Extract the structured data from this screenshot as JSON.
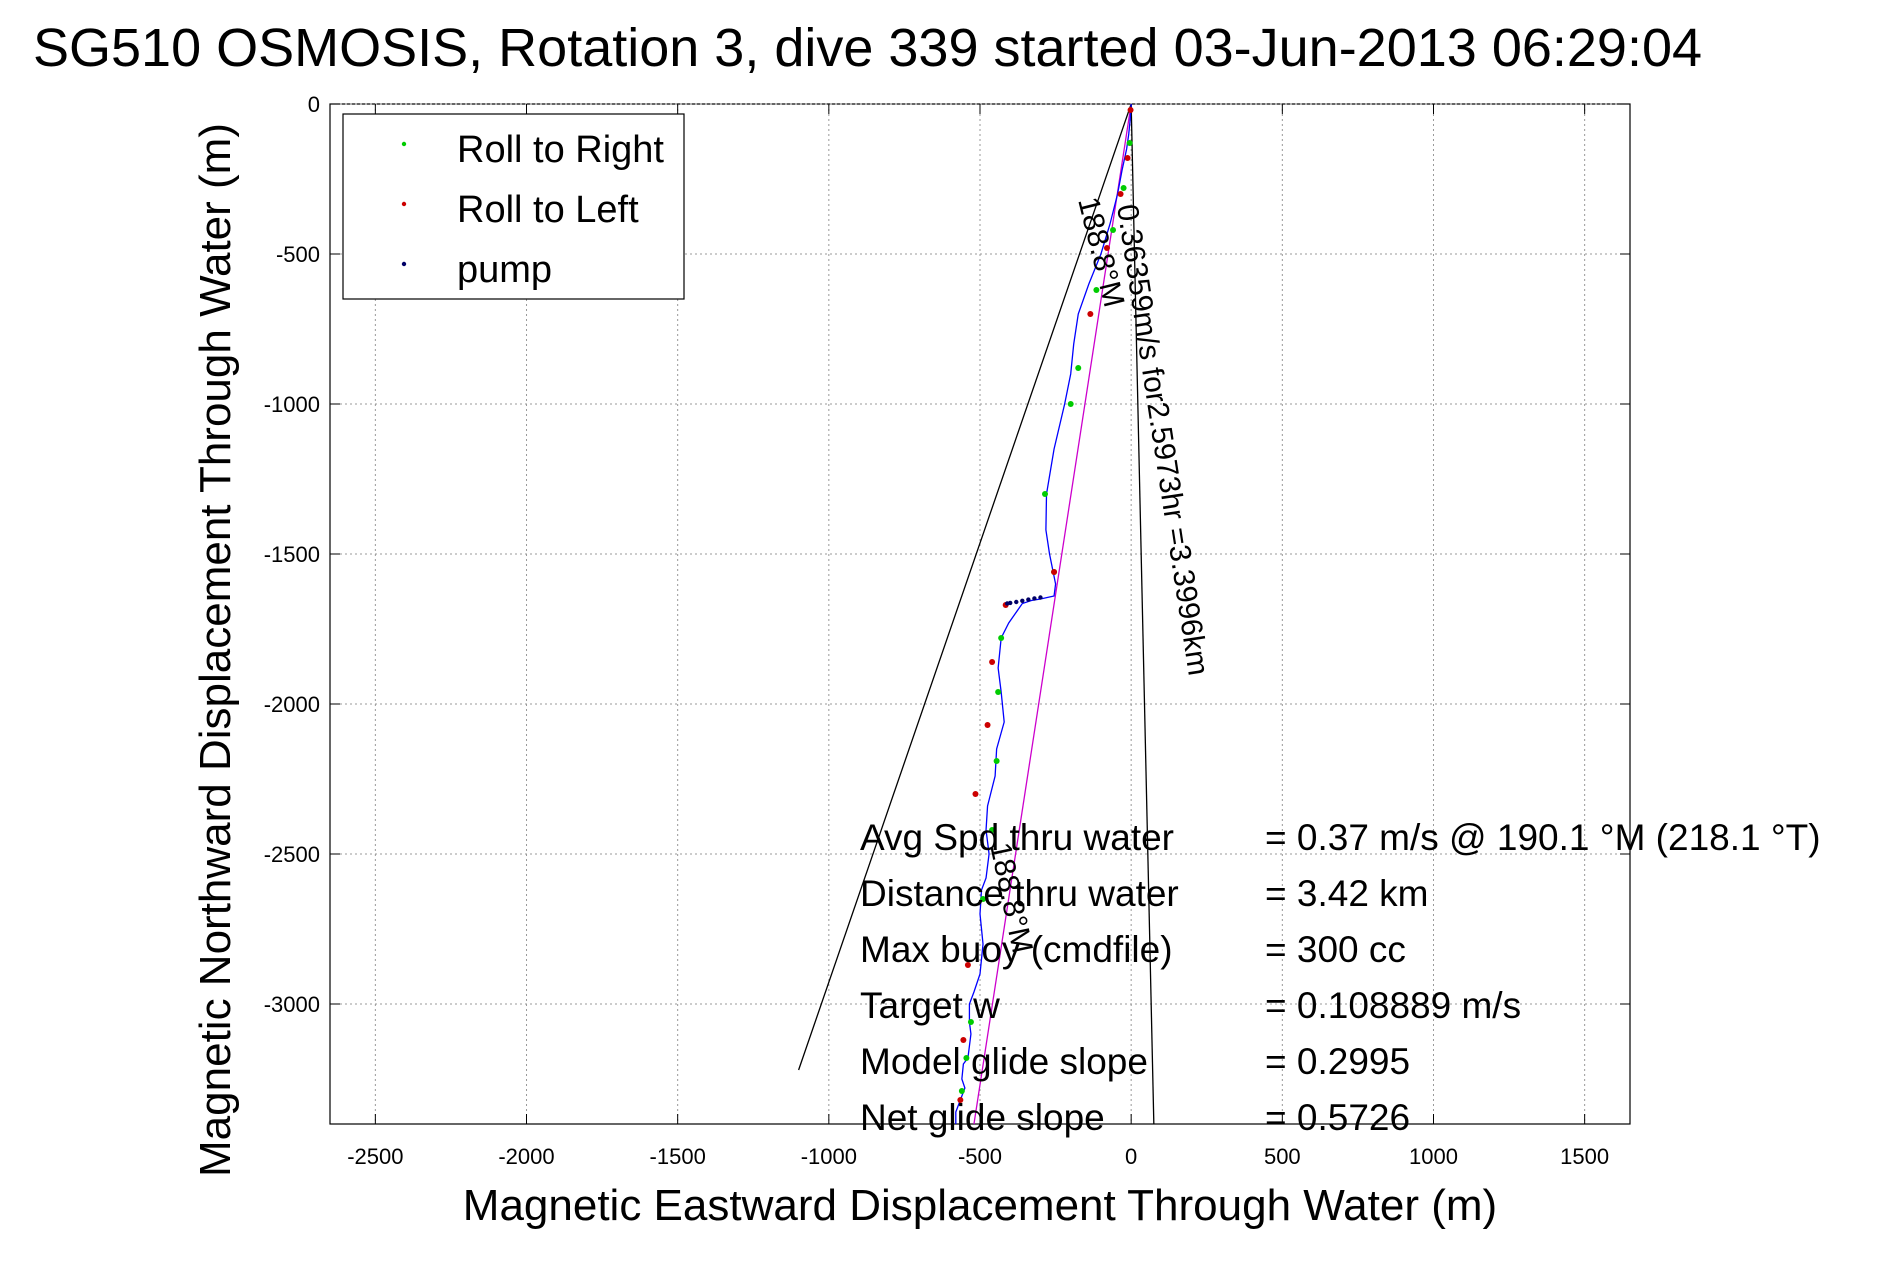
{
  "chart_data": {
    "type": "scatter",
    "title": "SG510 OSMOSIS, Rotation 3, dive 339 started 03-Jun-2013 06:29:04",
    "xlabel": "Magnetic Eastward Displacement Through Water (m)",
    "ylabel": "Magnetic Northward Displacement Through Water (m)",
    "xlim": [
      -2650,
      1650
    ],
    "ylim": [
      -3400,
      0
    ],
    "xticks": [
      -2500,
      -2000,
      -1500,
      -1000,
      -500,
      0,
      500,
      1000,
      1500
    ],
    "yticks": [
      0,
      -500,
      -1000,
      -1500,
      -2000,
      -2500,
      -3000
    ],
    "grid": true,
    "legend_position": "top-left",
    "colors": {
      "roll_right": "#00cc00",
      "roll_left": "#cc0000",
      "pump": "#000066",
      "track": "#0000ff",
      "avg_line": "#cc00cc",
      "cone": "#000000"
    },
    "legend": [
      {
        "label": "Roll to Right",
        "color": "#00cc00"
      },
      {
        "label": "Roll to Left",
        "color": "#cc0000"
      },
      {
        "label": "pump",
        "color": "#000066"
      }
    ],
    "series": [
      {
        "name": "track",
        "x": [
          0,
          -3,
          -8,
          -15,
          -30,
          -45,
          -70,
          -100,
          -140,
          -175,
          -190,
          -200,
          -220,
          -255,
          -280,
          -282,
          -270,
          -250,
          -255,
          -300,
          -330,
          -360,
          -405,
          -430,
          -440,
          -430,
          -420,
          -445,
          -450,
          -465,
          -475,
          -480,
          -470,
          -480,
          -495,
          -500,
          -490,
          -500,
          -520,
          -535,
          -535,
          -530,
          -540,
          -555,
          -560,
          -550,
          -565,
          -580,
          -580
        ],
        "y": [
          0,
          -50,
          -100,
          -150,
          -220,
          -300,
          -400,
          -500,
          -600,
          -700,
          -800,
          -900,
          -1000,
          -1150,
          -1300,
          -1420,
          -1500,
          -1600,
          -1640,
          -1650,
          -1655,
          -1665,
          -1730,
          -1780,
          -1880,
          -1960,
          -2060,
          -2150,
          -2240,
          -2300,
          -2340,
          -2420,
          -2500,
          -2580,
          -2620,
          -2700,
          -2800,
          -2900,
          -2960,
          -3000,
          -3060,
          -3100,
          -3180,
          -3200,
          -3250,
          -3280,
          -3320,
          -3360,
          -3400
        ]
      },
      {
        "name": "Roll to Right",
        "x": [
          -5,
          -25,
          -60,
          -115,
          -175,
          -200,
          -285,
          -255,
          -430,
          -440,
          -445,
          -460,
          -490,
          -530,
          -545,
          -560
        ],
        "y": [
          -130,
          -280,
          -420,
          -620,
          -880,
          -1000,
          -1300,
          -1560,
          -1780,
          -1960,
          -2190,
          -2420,
          -2650,
          -3060,
          -3180,
          -3290
        ]
      },
      {
        "name": "Roll to Left",
        "x": [
          -2,
          -12,
          -35,
          -80,
          -135,
          -255,
          -415,
          -460,
          -475,
          -515,
          -540,
          -555,
          -565
        ],
        "y": [
          -20,
          -180,
          -300,
          -480,
          -700,
          -1560,
          -1670,
          -1860,
          -2070,
          -2300,
          -2870,
          -3120,
          -3320
        ]
      },
      {
        "name": "pump",
        "x": [
          -300,
          -320,
          -340,
          -360,
          -380,
          -400,
          -410
        ],
        "y": [
          -1645,
          -1648,
          -1652,
          -1656,
          -1660,
          -1663,
          -1665
        ]
      }
    ],
    "lines": [
      {
        "name": "avg",
        "x": [
          0,
          -520
        ],
        "y": [
          0,
          -3400
        ]
      },
      {
        "name": "cone-left",
        "x": [
          0,
          -1100
        ],
        "y": [
          0,
          -3220
        ]
      },
      {
        "name": "cone-right",
        "x": [
          0,
          75
        ],
        "y": [
          0,
          -3400
        ]
      }
    ],
    "annotations": {
      "heading_top": "188.8°M",
      "speed": "0.36359m/s for2.5973hr =3.3996km",
      "heading_bottom": "188.8°M"
    },
    "stats": [
      {
        "label": "Avg Spd thru water",
        "value": "=  0.37 m/s @ 190.1 °M (218.1 °T)"
      },
      {
        "label": "Distance thru water",
        "value": "=  3.42 km"
      },
      {
        "label": "Max buoy (cmdfile)",
        "value": "= 300 cc"
      },
      {
        "label": "Target w",
        "value": "= 0.108889 m/s"
      },
      {
        "label": "Model glide slope",
        "value": "= 0.2995"
      },
      {
        "label": "Net glide slope",
        "value": "= 0.5726"
      }
    ]
  }
}
